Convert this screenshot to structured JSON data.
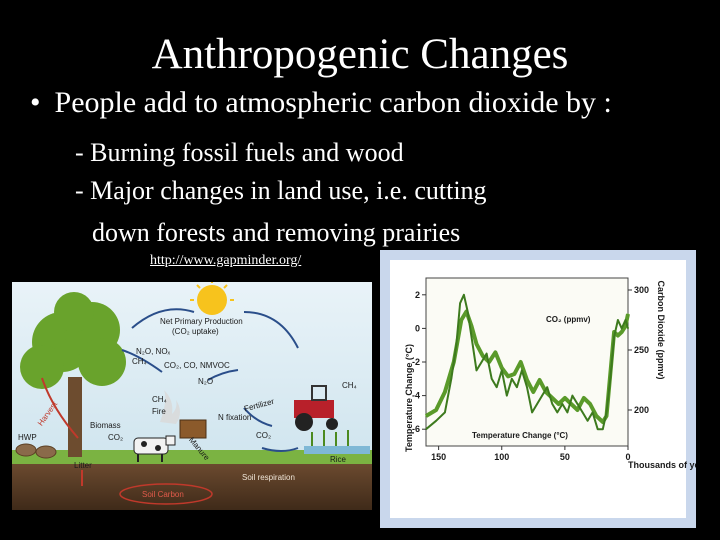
{
  "slide": {
    "title": "Anthropogenic Changes",
    "bullet_marker": "•",
    "bullet_text": "People add to atmospheric carbon dioxide by :",
    "sub_items": [
      "- Burning fossil fuels and wood",
      "- Major changes in land use, i.e. cutting",
      "down forests and removing prairies"
    ],
    "link_text": "http://www.gapminder.org/"
  },
  "cycle_diagram": {
    "labels": {
      "npp": "Net Primary Production",
      "npp_sub": "(CO₂ uptake)",
      "gases1": "N₂O, NOₓ",
      "ch4_a": "CH₄",
      "gases2": "CO₂, CO, NMVOC",
      "n2o": "N₂O",
      "ch4_b": "CH₄",
      "harvest": "Harvest",
      "fire": "Fire",
      "ch4_c": "CH₄",
      "fertilizer": "Fertilizer",
      "biomass": "Biomass",
      "co2_a": "CO₂",
      "hwp": "HWP",
      "n_fixation": "N fixation",
      "co2_b": "CO₂",
      "manure": "Manure",
      "litter": "Litter",
      "rice": "Rice",
      "soil_respiration": "Soil respiration",
      "soil_carbon": "Soil Carbon"
    }
  },
  "chart_data": {
    "type": "line",
    "xlabel": "Thousands of years ago",
    "x_ticks": [
      "150",
      "100",
      "50",
      "0"
    ],
    "xlim": [
      160,
      0
    ],
    "y_left_label": "Temperature Change (°C)",
    "y_left_ticks": [
      "2",
      "0",
      "-2",
      "-4",
      "-6"
    ],
    "ylim_left": [
      -7,
      3
    ],
    "y_right_label": "Carbon Dioxide (ppmv)",
    "y_right_ticks": [
      "300",
      "250",
      "200"
    ],
    "ylim_right": [
      170,
      310
    ],
    "series": [
      {
        "name": "CO₂ (ppmv)",
        "axis": "right",
        "color": "#5a9a2a",
        "x": [
          160,
          152,
          145,
          138,
          132,
          128,
          124,
          120,
          115,
          110,
          105,
          100,
          95,
          90,
          85,
          80,
          75,
          70,
          65,
          60,
          55,
          50,
          45,
          40,
          35,
          30,
          25,
          20,
          17,
          14,
          11,
          8,
          5,
          2,
          0
        ],
        "y": [
          195,
          200,
          215,
          240,
          275,
          282,
          270,
          255,
          245,
          240,
          248,
          235,
          228,
          230,
          240,
          225,
          215,
          225,
          215,
          210,
          205,
          210,
          205,
          200,
          210,
          205,
          195,
          190,
          195,
          230,
          265,
          262,
          265,
          270,
          280
        ]
      },
      {
        "name": "Temperature Change (°C)",
        "axis": "left",
        "color": "#3d7a1e",
        "x": [
          160,
          152,
          145,
          140,
          136,
          133,
          130,
          127,
          124,
          120,
          116,
          112,
          108,
          104,
          100,
          96,
          92,
          88,
          84,
          80,
          76,
          72,
          68,
          64,
          60,
          56,
          52,
          48,
          44,
          40,
          36,
          32,
          28,
          24,
          20,
          17,
          14,
          11,
          8,
          5,
          2,
          0
        ],
        "y": [
          -6,
          -5.5,
          -5,
          -3,
          -1,
          1.5,
          2,
          1,
          -0.5,
          -2.5,
          -2,
          -1.5,
          -3,
          -3.5,
          -2.5,
          -4,
          -3,
          -3.5,
          -2.5,
          -3.5,
          -5,
          -4.5,
          -4,
          -3.5,
          -4.5,
          -5,
          -4.5,
          -5,
          -4,
          -4.5,
          -5,
          -5.5,
          -5,
          -6,
          -6,
          -5,
          -3,
          -0.5,
          0.5,
          0,
          0.5,
          0
        ]
      }
    ]
  }
}
